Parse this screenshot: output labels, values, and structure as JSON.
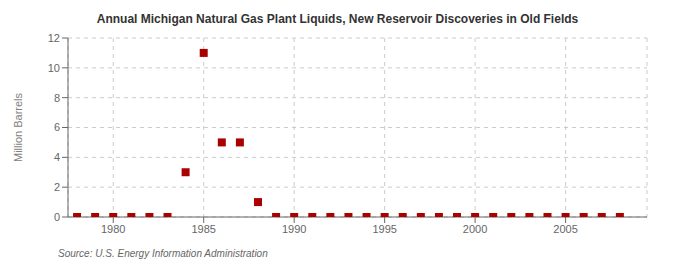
{
  "chart_data": {
    "type": "scatter",
    "title": "Annual Michigan Natural Gas Plant Liquids,  New Reservoir Discoveries in Old Fields",
    "ylabel": "Million Barrels",
    "source": "Source: U.S. Energy Information Administration",
    "x": [
      1978,
      1979,
      1980,
      1981,
      1982,
      1983,
      1984,
      1985,
      1986,
      1987,
      1988,
      1989,
      1990,
      1991,
      1992,
      1993,
      1994,
      1995,
      1996,
      1997,
      1998,
      1999,
      2000,
      2001,
      2002,
      2003,
      2004,
      2005,
      2006,
      2007,
      2008
    ],
    "values": [
      0,
      0,
      0,
      0,
      0,
      0,
      3.0,
      11.0,
      5.0,
      5.0,
      1.0,
      0,
      0,
      0,
      0,
      0,
      0,
      0,
      0,
      0,
      0,
      0,
      0,
      0,
      0,
      0,
      0,
      0,
      0,
      0,
      0
    ],
    "color": "#aa0000",
    "marker": "square",
    "xlim": [
      1977.5,
      2009.5
    ],
    "ylim": [
      0,
      12
    ],
    "xticks": [
      1980,
      1985,
      1990,
      1995,
      2000,
      2005
    ],
    "yticks": [
      0,
      2,
      4,
      6,
      8,
      10,
      12
    ],
    "grid": true
  }
}
